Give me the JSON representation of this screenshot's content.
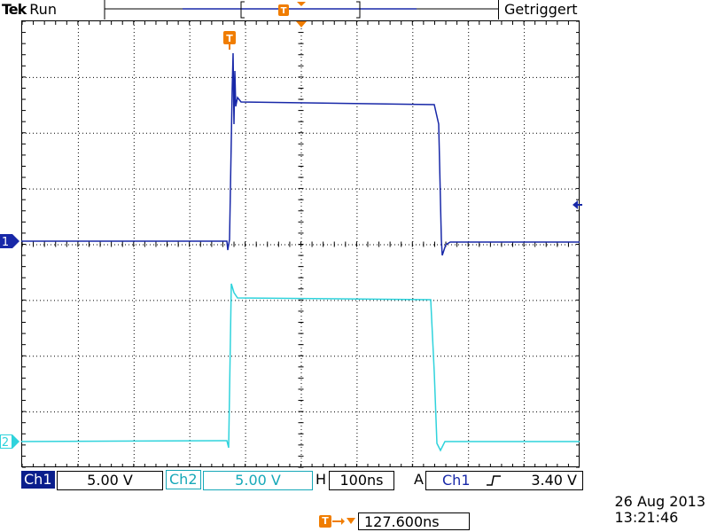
{
  "header": {
    "brand": "Tek",
    "run_state": "Run",
    "trigger_status": "Getriggert"
  },
  "channels": {
    "ch1": {
      "label": "Ch1",
      "scale": "5.00 V",
      "marker": "1",
      "color": "#1828a8"
    },
    "ch2": {
      "label": "Ch2",
      "scale": "5.00 V",
      "marker": "2",
      "color": "#2fd3dc"
    }
  },
  "horizontal": {
    "label": "H",
    "timebase": "100ns"
  },
  "trigger": {
    "label": "A",
    "source": "Ch1",
    "slope_icon": "rising-edge-icon",
    "level": "3.40 V",
    "marker": "T",
    "color": "#f07d00"
  },
  "offset": {
    "value": "127.600ns"
  },
  "timestamp": {
    "date": "26 Aug 2013",
    "time": "13:21:46"
  }
}
